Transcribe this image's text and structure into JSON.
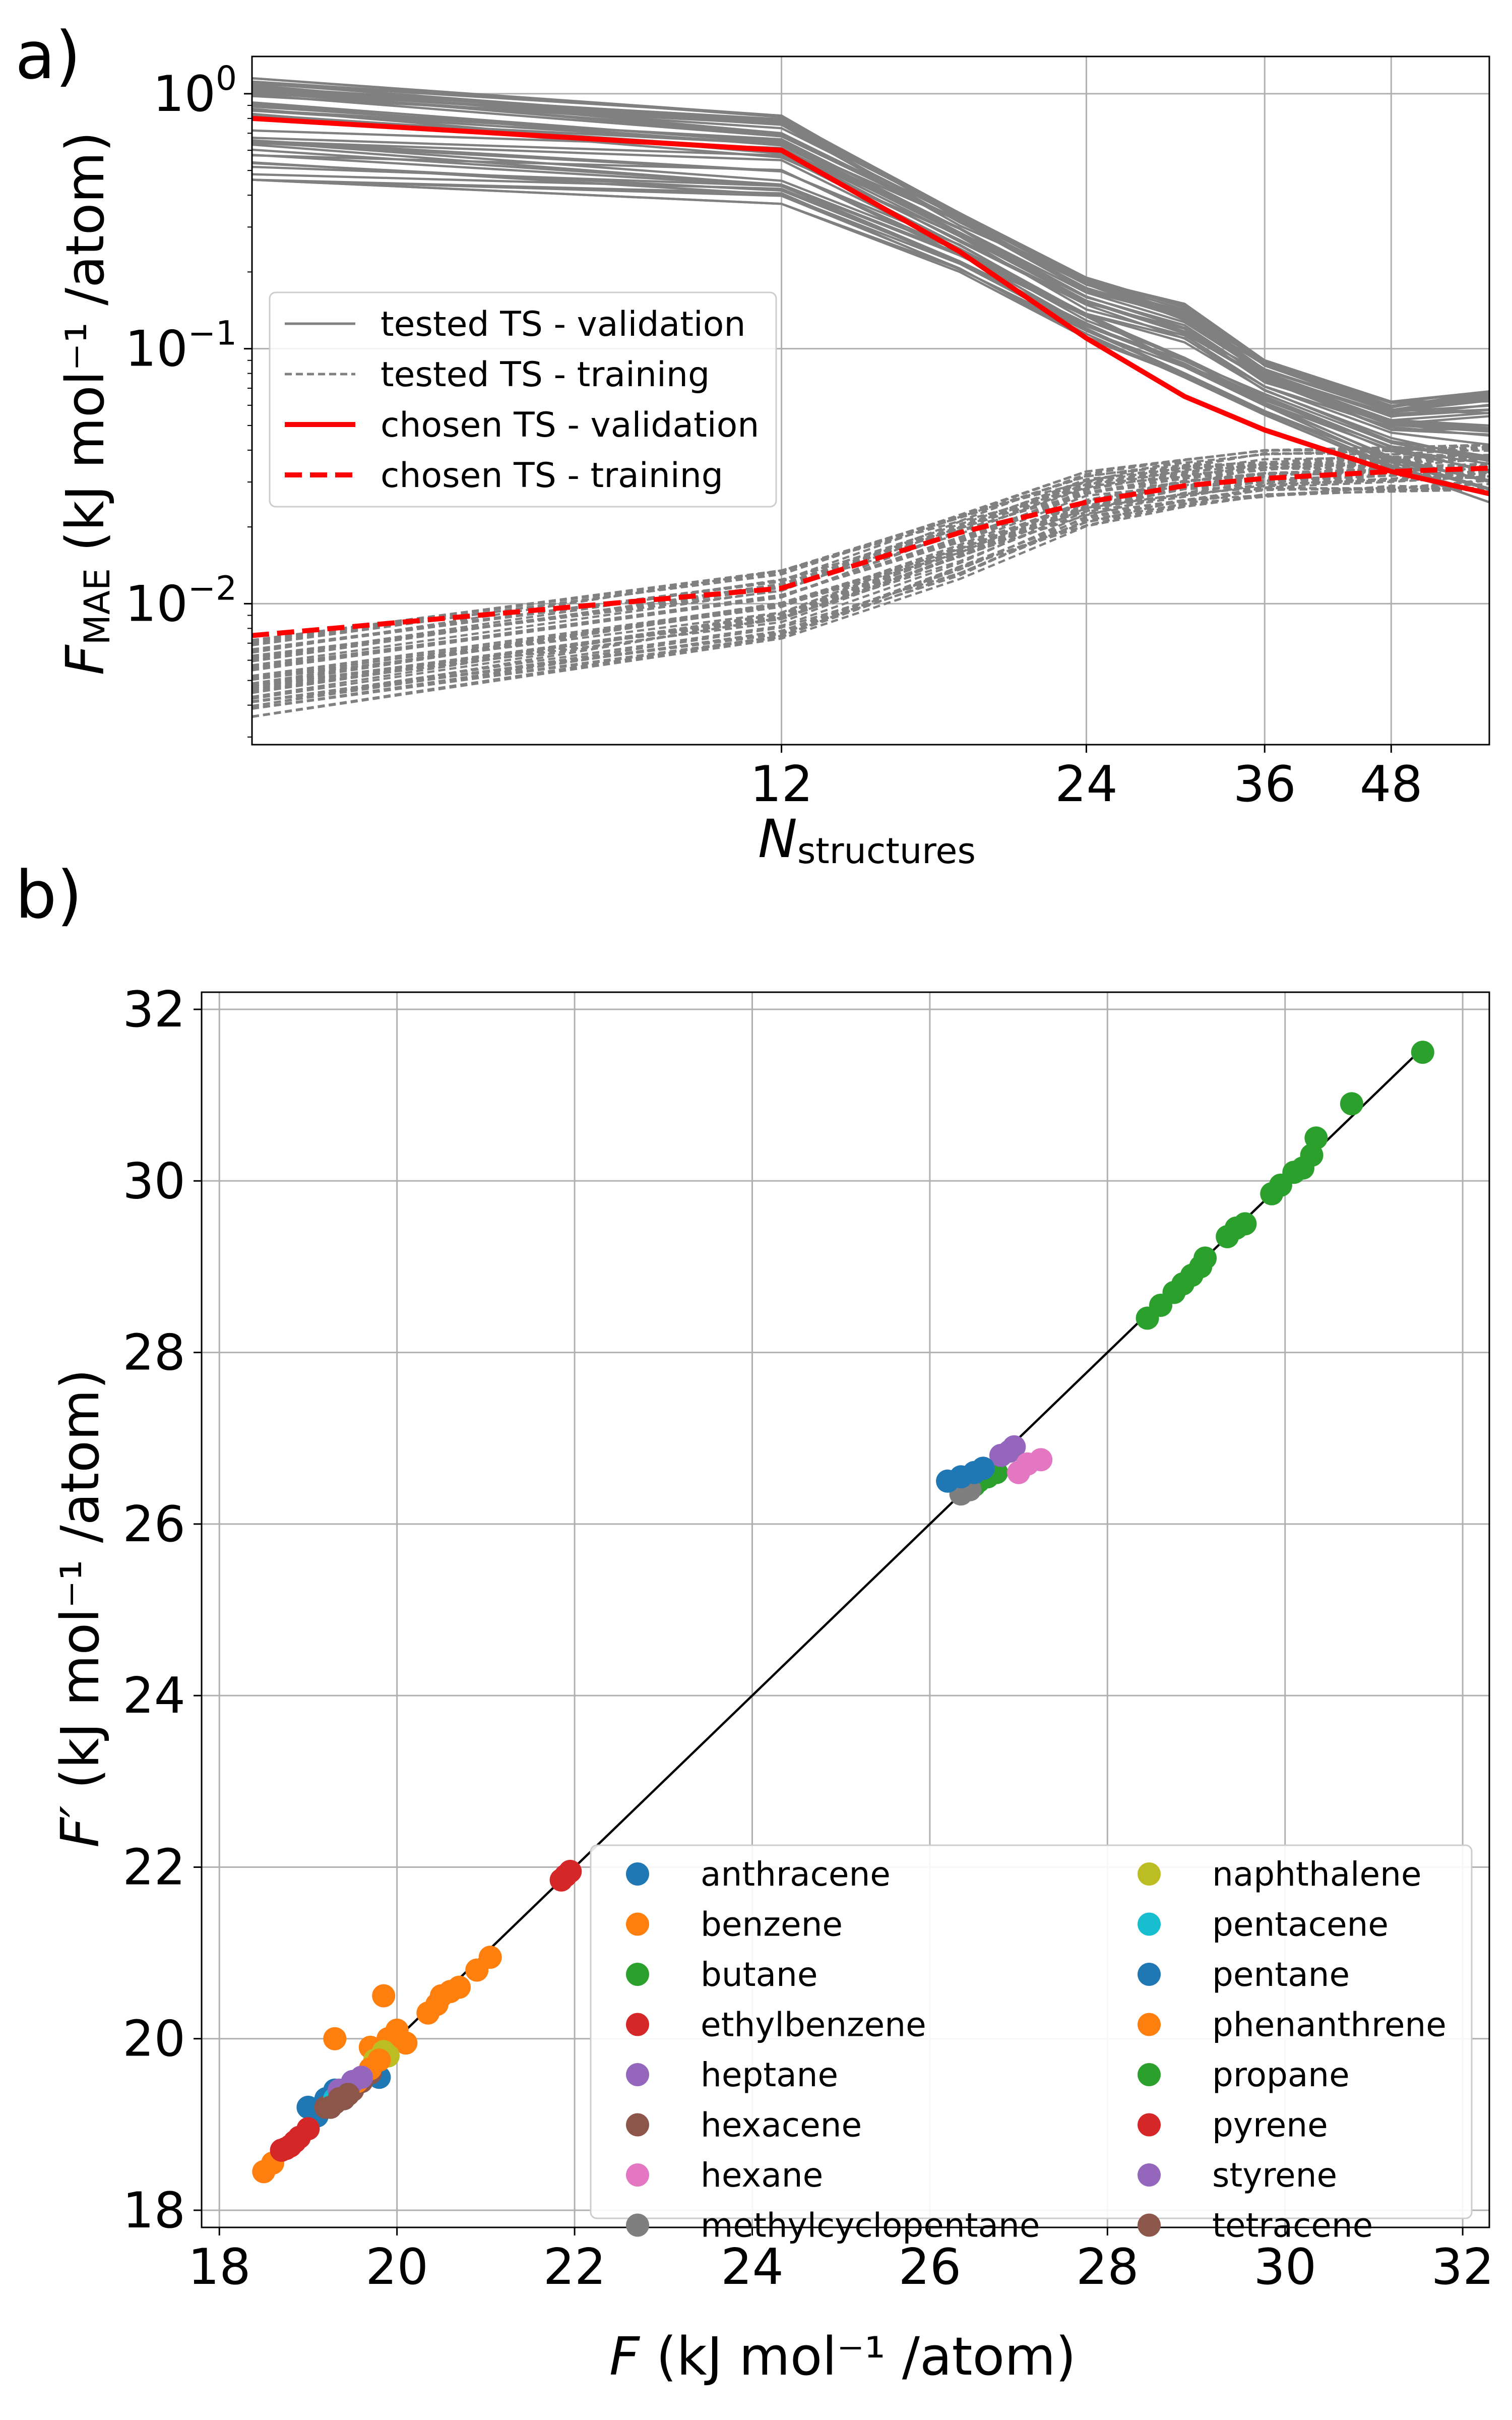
{
  "chart_data": [
    {
      "panel_label": "a)",
      "type": "line",
      "xlabel": "N",
      "xlabel_sub": "structures",
      "ylabel": "F",
      "ylabel_sub": "MAE",
      "ylabel_unit": " (kJ mol⁻¹ /atom)",
      "xscale": "log",
      "yscale": "log",
      "xlim": [
        3.6,
        60
      ],
      "ylim": [
        0.0028,
        1.4
      ],
      "xticks": [
        12,
        24,
        36,
        48
      ],
      "xtick_labels": [
        "12",
        "24",
        "36",
        "48"
      ],
      "yticks": [
        0.01,
        0.1,
        1
      ],
      "ytick_labels": [
        {
          "base": "10",
          "exp": "−2"
        },
        {
          "base": "10",
          "exp": "−1"
        },
        {
          "base": "10",
          "exp": "0"
        }
      ],
      "grid": true,
      "legend_position": "center-left",
      "x": [
        3.6,
        12,
        18,
        24,
        30,
        36,
        48,
        60
      ],
      "series": [
        {
          "name": "tested TS - validation",
          "style": "solid",
          "color": "#808080",
          "group": "gray-band-upper",
          "band_low": [
            0.46,
            0.37,
            0.2,
            0.11,
            0.075,
            0.055,
            0.034,
            0.025
          ],
          "band_high": [
            1.15,
            0.82,
            0.34,
            0.19,
            0.15,
            0.09,
            0.062,
            0.068
          ]
        },
        {
          "name": "tested TS - training",
          "style": "dashed",
          "color": "#808080",
          "group": "gray-band-lower",
          "band_low": [
            0.0036,
            0.0073,
            0.0125,
            0.02,
            0.024,
            0.026,
            0.027,
            0.028
          ],
          "band_high": [
            0.0072,
            0.0135,
            0.023,
            0.033,
            0.037,
            0.04,
            0.041,
            0.042
          ]
        },
        {
          "name": "chosen TS - validation",
          "style": "solid",
          "color": "#ff0000",
          "values": [
            0.8,
            0.6,
            0.24,
            0.11,
            0.065,
            0.048,
            0.033,
            0.027
          ]
        },
        {
          "name": "chosen TS - training",
          "style": "dashed",
          "color": "#ff0000",
          "values": [
            0.0075,
            0.0115,
            0.019,
            0.025,
            0.029,
            0.031,
            0.033,
            0.034
          ]
        }
      ]
    },
    {
      "panel_label": "b)",
      "type": "scatter",
      "xlabel": "F",
      "xlabel_unit": " (kJ mol⁻¹ /atom)",
      "ylabel": "F′",
      "ylabel_unit": " (kJ mol⁻¹ /atom)",
      "xlim": [
        17.8,
        32.3
      ],
      "ylim": [
        17.8,
        32.2
      ],
      "xticks": [
        18,
        20,
        22,
        24,
        26,
        28,
        30,
        32
      ],
      "yticks": [
        18,
        20,
        22,
        24,
        26,
        28,
        30,
        32
      ],
      "grid": true,
      "legend_position": "lower-right",
      "reference_line": {
        "x": [
          18.4,
          31.6
        ],
        "y": [
          18.4,
          31.6
        ],
        "color": "#000000"
      },
      "series": [
        {
          "name": "anthracene",
          "color": "#1f77b4",
          "points": [
            [
              19.0,
              19.2
            ],
            [
              19.2,
              19.3
            ],
            [
              19.3,
              19.4
            ],
            [
              19.5,
              19.5
            ],
            [
              19.7,
              19.6
            ],
            [
              19.8,
              19.55
            ],
            [
              19.1,
              19.1
            ],
            [
              19.4,
              19.3
            ]
          ]
        },
        {
          "name": "benzene",
          "color": "#ff7f0e",
          "points": [
            [
              18.5,
              18.45
            ],
            [
              18.6,
              18.55
            ],
            [
              18.8,
              18.75
            ],
            [
              19.3,
              20.0
            ],
            [
              19.7,
              19.9
            ],
            [
              19.85,
              20.5
            ],
            [
              19.9,
              20.0
            ],
            [
              20.0,
              20.1
            ],
            [
              20.1,
              19.95
            ],
            [
              20.35,
              20.3
            ],
            [
              20.45,
              20.4
            ],
            [
              20.6,
              20.55
            ],
            [
              20.7,
              20.6
            ],
            [
              20.9,
              20.8
            ],
            [
              21.05,
              20.95
            ],
            [
              20.5,
              20.5
            ]
          ]
        },
        {
          "name": "butane",
          "color": "#2ca02c",
          "points": [
            [
              26.5,
              26.45
            ],
            [
              26.55,
              26.5
            ],
            [
              26.65,
              26.55
            ],
            [
              26.75,
              26.6
            ]
          ]
        },
        {
          "name": "ethylbenzene",
          "color": "#d62728",
          "points": [
            [
              21.85,
              21.85
            ],
            [
              21.9,
              21.9
            ],
            [
              21.95,
              21.95
            ]
          ]
        },
        {
          "name": "heptane",
          "color": "#9467bd",
          "points": [
            [
              26.8,
              26.8
            ],
            [
              26.9,
              26.85
            ],
            [
              26.95,
              26.9
            ]
          ]
        },
        {
          "name": "hexacene",
          "color": "#8c564b",
          "points": [
            [
              19.2,
              19.2
            ],
            [
              19.3,
              19.25
            ],
            [
              19.4,
              19.3
            ],
            [
              19.5,
              19.4
            ],
            [
              19.6,
              19.5
            ],
            [
              19.7,
              19.6
            ]
          ]
        },
        {
          "name": "hexane",
          "color": "#e377c2",
          "points": [
            [
              27.0,
              26.6
            ],
            [
              27.1,
              26.7
            ],
            [
              27.25,
              26.75
            ]
          ]
        },
        {
          "name": "methylcyclopentane",
          "color": "#7f7f7f",
          "points": [
            [
              26.35,
              26.35
            ],
            [
              26.45,
              26.4
            ]
          ]
        },
        {
          "name": "naphthalene",
          "color": "#bcbd22",
          "points": [
            [
              19.75,
              19.75
            ],
            [
              19.85,
              19.85
            ],
            [
              19.9,
              19.8
            ]
          ]
        },
        {
          "name": "pentacene",
          "color": "#17becf",
          "points": [
            [
              19.3,
              19.3
            ],
            [
              19.4,
              19.35
            ]
          ]
        },
        {
          "name": "pentane",
          "color": "#1f77b4",
          "points": [
            [
              26.2,
              26.5
            ],
            [
              26.35,
              26.55
            ],
            [
              26.5,
              26.6
            ],
            [
              26.6,
              26.65
            ]
          ]
        },
        {
          "name": "phenanthrene",
          "color": "#ff7f0e",
          "points": [
            [
              19.4,
              19.4
            ],
            [
              19.55,
              19.5
            ],
            [
              19.7,
              19.65
            ],
            [
              19.8,
              19.75
            ]
          ]
        },
        {
          "name": "propane",
          "color": "#2ca02c",
          "points": [
            [
              28.45,
              28.4
            ],
            [
              28.6,
              28.55
            ],
            [
              28.75,
              28.7
            ],
            [
              28.85,
              28.8
            ],
            [
              28.95,
              28.9
            ],
            [
              29.05,
              29.0
            ],
            [
              29.1,
              29.1
            ],
            [
              29.35,
              29.35
            ],
            [
              29.45,
              29.45
            ],
            [
              29.55,
              29.5
            ],
            [
              29.85,
              29.85
            ],
            [
              29.95,
              29.95
            ],
            [
              30.1,
              30.1
            ],
            [
              30.2,
              30.15
            ],
            [
              30.3,
              30.3
            ],
            [
              30.35,
              30.5
            ],
            [
              30.75,
              30.9
            ],
            [
              31.55,
              31.5
            ]
          ]
        },
        {
          "name": "pyrene",
          "color": "#d62728",
          "points": [
            [
              18.7,
              18.7
            ],
            [
              18.8,
              18.75
            ],
            [
              18.9,
              18.85
            ],
            [
              19.0,
              18.95
            ],
            [
              18.75,
              18.72
            ],
            [
              18.85,
              18.8
            ]
          ]
        },
        {
          "name": "styrene",
          "color": "#9467bd",
          "points": [
            [
              19.35,
              19.4
            ],
            [
              19.5,
              19.5
            ],
            [
              19.6,
              19.55
            ]
          ]
        },
        {
          "name": "tetracene",
          "color": "#8c564b",
          "points": [
            [
              19.25,
              19.2
            ],
            [
              19.35,
              19.3
            ],
            [
              19.45,
              19.35
            ]
          ]
        }
      ]
    }
  ]
}
